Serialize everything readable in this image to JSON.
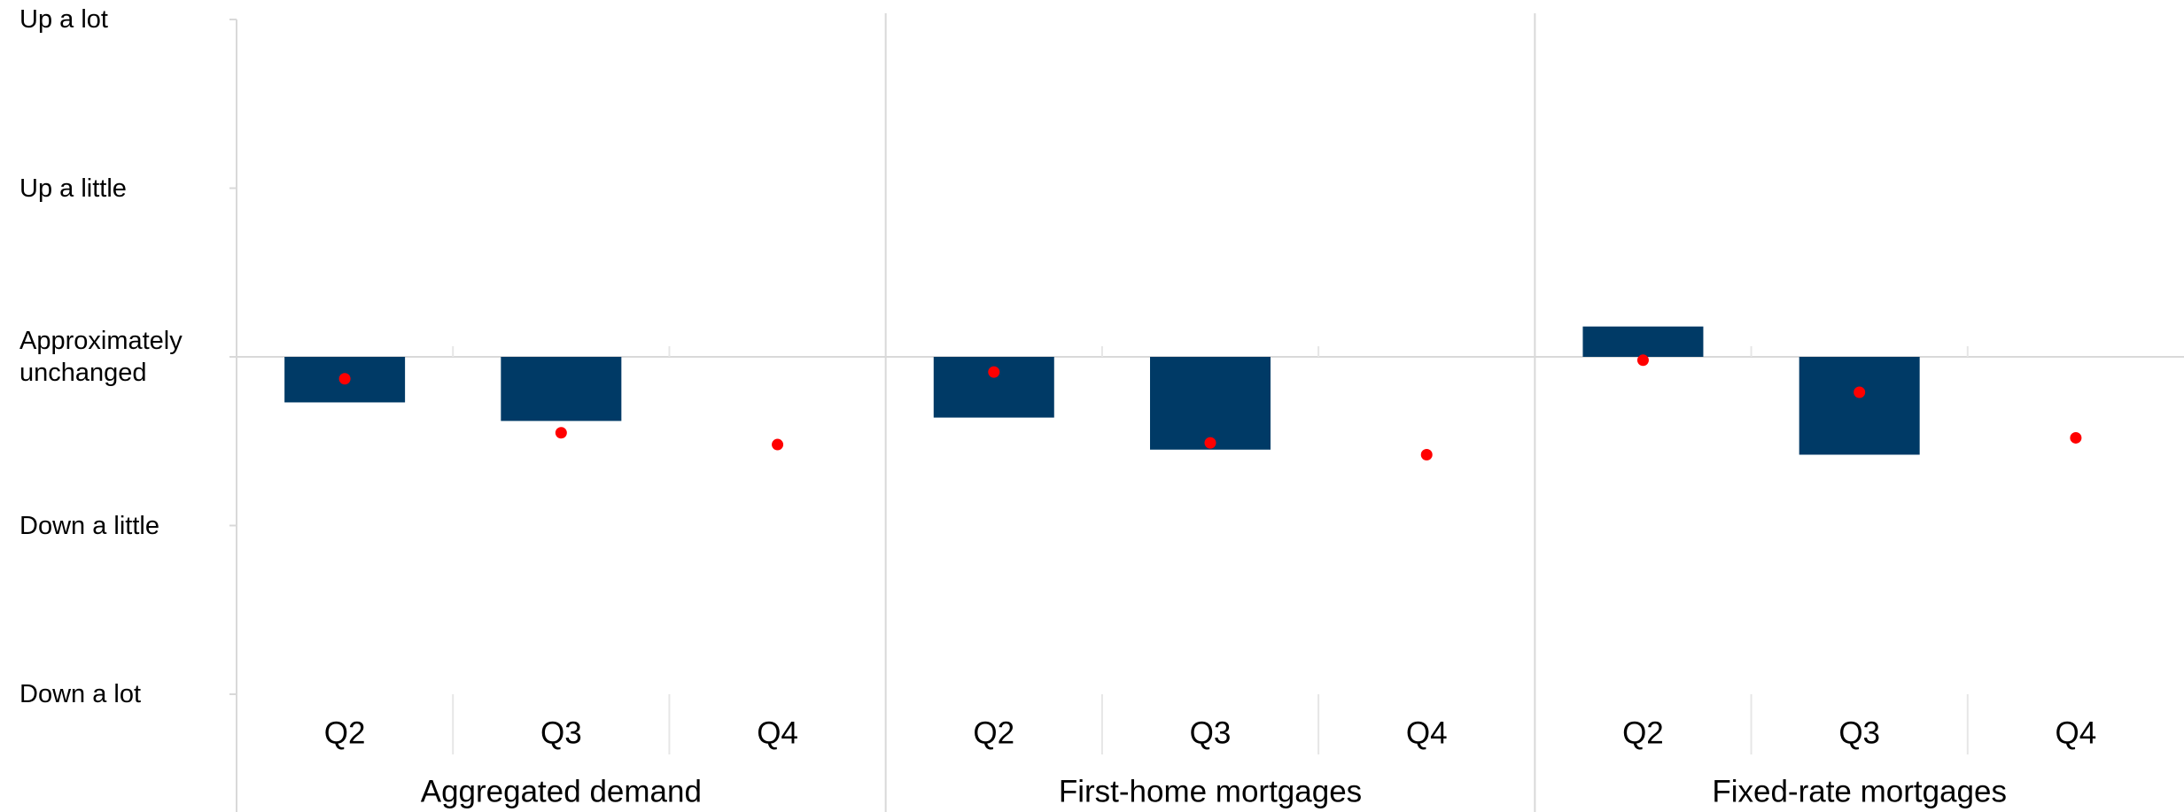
{
  "chart_data": {
    "type": "bar",
    "categories": [
      "Q2",
      "Q3",
      "Q4",
      "Q2",
      "Q3",
      "Q4",
      "Q2",
      "Q3",
      "Q4"
    ],
    "groups": [
      "Aggregated demand",
      "First-home mortgages",
      "Fixed-rate mortgages"
    ],
    "series": [
      {
        "type": "bar",
        "color": "#003a66",
        "values": [
          -0.27,
          -0.38,
          null,
          -0.36,
          -0.55,
          null,
          0.18,
          -0.58,
          null
        ]
      },
      {
        "type": "scatter",
        "color": "#ff0000",
        "values": [
          -0.13,
          -0.45,
          -0.52,
          -0.09,
          -0.51,
          -0.58,
          -0.02,
          -0.21,
          -0.48
        ]
      }
    ],
    "ylim": [
      -2,
      2
    ],
    "yticks": [
      {
        "value": 2,
        "label": "Up a lot"
      },
      {
        "value": 1,
        "label": "Up a little"
      },
      {
        "value": 0,
        "label": "Approximately unchanged"
      },
      {
        "value": -1,
        "label": "Down a little"
      },
      {
        "value": -2,
        "label": "Down a lot"
      }
    ]
  }
}
